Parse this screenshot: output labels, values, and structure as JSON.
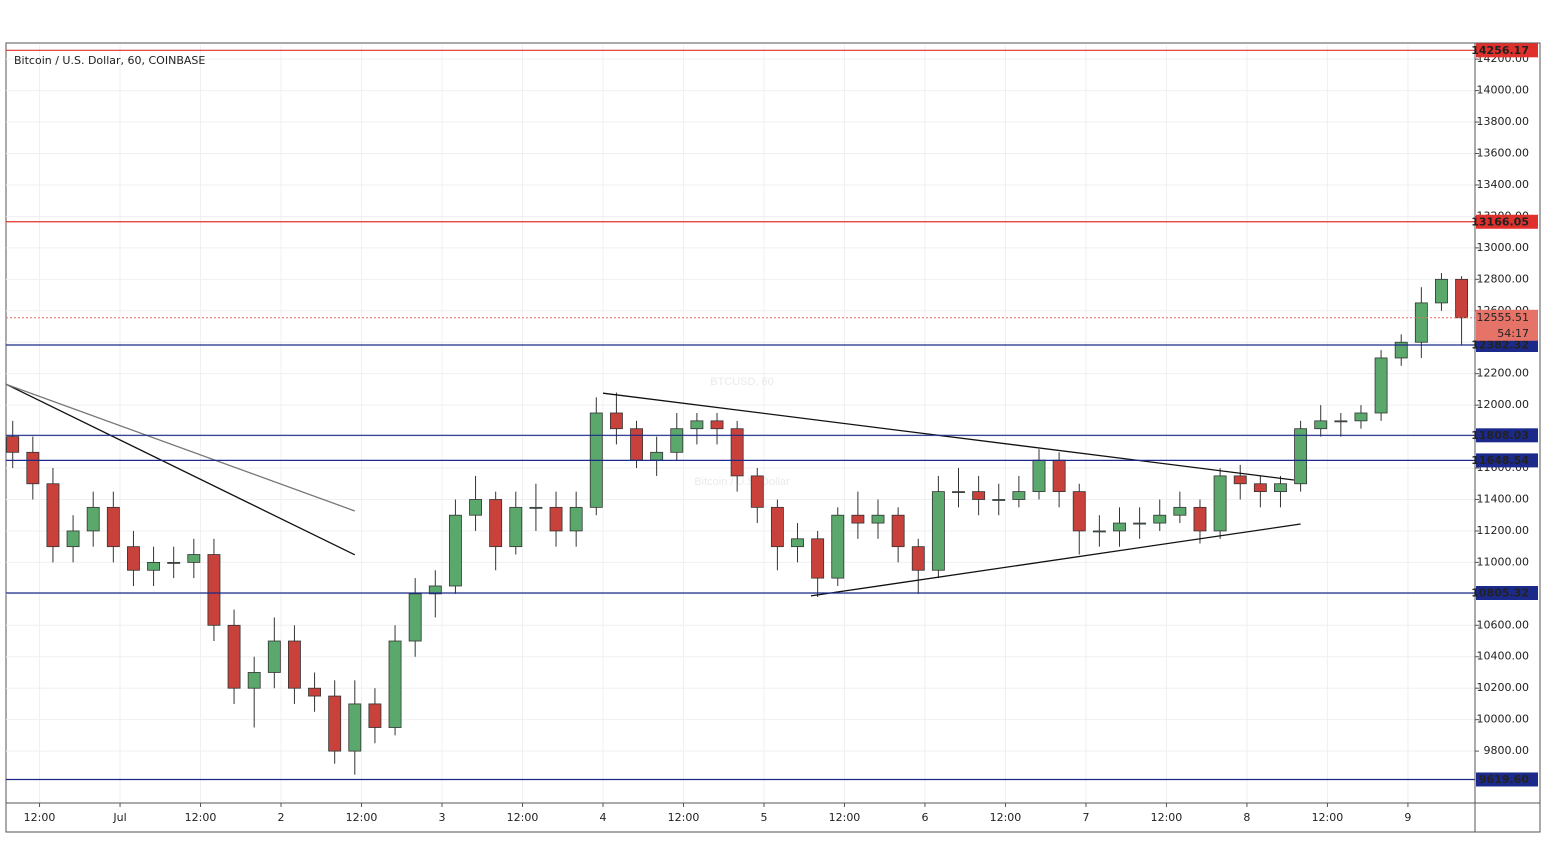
{
  "chart_data": {
    "type": "candlestick",
    "title": "Bitcoin / U.S. Dollar, 60, COINBASE",
    "watermark": "BTCUSD, 60",
    "watermark_subtitle": "Bitcoin / U.S. Dollar",
    "xlim": [
      7,
      226
    ],
    "ylim": [
      9470,
      14290
    ],
    "grid": true,
    "up_color": "#5aa86c",
    "down_color": "#c9413b",
    "xticks": [
      {
        "value": 12,
        "label": "12:00"
      },
      {
        "value": 24,
        "label": "Jul"
      },
      {
        "value": 36,
        "label": "12:00"
      },
      {
        "value": 48,
        "label": "2"
      },
      {
        "value": 60,
        "label": "12:00"
      },
      {
        "value": 72,
        "label": "3"
      },
      {
        "value": 84,
        "label": "12:00"
      },
      {
        "value": 96,
        "label": "4"
      },
      {
        "value": 108,
        "label": "12:00"
      },
      {
        "value": 120,
        "label": "5"
      },
      {
        "value": 132,
        "label": "12:00"
      },
      {
        "value": 144,
        "label": "6"
      },
      {
        "value": 156,
        "label": "12:00"
      },
      {
        "value": 168,
        "label": "7"
      },
      {
        "value": 180,
        "label": "12:00"
      },
      {
        "value": 192,
        "label": "8"
      },
      {
        "value": 204,
        "label": "12:00"
      },
      {
        "value": 216,
        "label": "9"
      }
    ],
    "yticks": [
      {
        "value": 9800,
        "label": "9800.00"
      },
      {
        "value": 10000,
        "label": "10000.00"
      },
      {
        "value": 10200,
        "label": "10200.00"
      },
      {
        "value": 10400,
        "label": "10400.00"
      },
      {
        "value": 10600,
        "label": "10600.00"
      },
      {
        "value": 10800,
        "label": "10800.00"
      },
      {
        "value": 11000,
        "label": "11000.00"
      },
      {
        "value": 11200,
        "label": "11200.00"
      },
      {
        "value": 11400,
        "label": "11400.00"
      },
      {
        "value": 11600,
        "label": "11600.00"
      },
      {
        "value": 11800,
        "label": "11800.00"
      },
      {
        "value": 12000,
        "label": "12000.00"
      },
      {
        "value": 12200,
        "label": "12200.00"
      },
      {
        "value": 12400,
        "label": "12400.00"
      },
      {
        "value": 12600,
        "label": "12600.00"
      },
      {
        "value": 12800,
        "label": "12800.00"
      },
      {
        "value": 13000,
        "label": "13000.00"
      },
      {
        "value": 13200,
        "label": "13200.00"
      },
      {
        "value": 13400,
        "label": "13400.00"
      },
      {
        "value": 13600,
        "label": "13600.00"
      },
      {
        "value": 13800,
        "label": "13800.00"
      },
      {
        "value": 14000,
        "label": "14000.00"
      },
      {
        "value": 14200,
        "label": "14200.00"
      }
    ],
    "x": [
      8,
      11,
      14,
      17,
      20,
      23,
      26,
      29,
      32,
      35,
      38,
      41,
      44,
      47,
      50,
      53,
      56,
      59,
      62,
      65,
      68,
      71,
      74,
      77,
      80,
      83,
      86,
      89,
      92,
      95,
      98,
      101,
      104,
      107,
      110,
      113,
      116,
      119,
      122,
      125,
      128,
      131,
      134,
      137,
      140,
      143,
      146,
      149,
      152,
      155,
      158,
      161,
      164,
      167,
      170,
      173,
      176,
      179,
      182,
      185,
      188,
      191,
      194,
      197,
      200,
      203,
      206,
      209,
      212,
      215,
      218,
      221,
      224
    ],
    "open": [
      11800,
      11700,
      11500,
      11100,
      11200,
      11350,
      11100,
      10950,
      11000,
      11000,
      11050,
      10600,
      10200,
      10300,
      10500,
      10200,
      10150,
      9800,
      10100,
      9950,
      10500,
      10800,
      10850,
      11300,
      11400,
      11100,
      11350,
      11350,
      11200,
      11350,
      11950,
      11850,
      11650,
      11700,
      11850,
      11900,
      11850,
      11550,
      11350,
      11100,
      11150,
      10900,
      11300,
      11250,
      11300,
      11100,
      10950,
      11450,
      11450,
      11400,
      11400,
      11450,
      11650,
      11450,
      11200,
      11200,
      11250,
      11250,
      11300,
      11350,
      11200,
      11550,
      11500,
      11450,
      11500,
      11850,
      11900,
      11900,
      11950,
      12300,
      12400,
      12650,
      12800
    ],
    "high": [
      11900,
      11800,
      11600,
      11300,
      11450,
      11450,
      11200,
      11100,
      11100,
      11150,
      11150,
      10700,
      10400,
      10650,
      10600,
      10300,
      10250,
      10250,
      10200,
      10600,
      10900,
      10950,
      11400,
      11550,
      11450,
      11450,
      11500,
      11450,
      11450,
      12050,
      12080,
      11900,
      11800,
      11950,
      11950,
      11950,
      11900,
      11600,
      11400,
      11250,
      11200,
      11350,
      11450,
      11400,
      11350,
      11150,
      11550,
      11600,
      11550,
      11500,
      11550,
      11720,
      11700,
      11500,
      11300,
      11350,
      11350,
      11400,
      11450,
      11400,
      11600,
      11620,
      11550,
      11550,
      11900,
      12000,
      11950,
      12000,
      12350,
      12450,
      12750,
      12840,
      12820
    ],
    "low": [
      11600,
      11400,
      11000,
      11000,
      11100,
      11000,
      10850,
      10850,
      10900,
      10900,
      10500,
      10100,
      9950,
      10200,
      10100,
      10050,
      9720,
      9650,
      9850,
      9900,
      10400,
      10650,
      10800,
      11200,
      10950,
      11050,
      11200,
      11100,
      11100,
      11300,
      11750,
      11600,
      11550,
      11650,
      11750,
      11750,
      11450,
      11250,
      10950,
      11000,
      10780,
      10850,
      11150,
      11150,
      11000,
      10800,
      10900,
      11350,
      11300,
      11300,
      11350,
      11400,
      11350,
      11050,
      11100,
      11100,
      11150,
      11200,
      11250,
      11120,
      11150,
      11400,
      11350,
      11350,
      11450,
      11800,
      11800,
      11850,
      11900,
      12250,
      12300,
      12600,
      12380
    ],
    "close": [
      11700,
      11500,
      11100,
      11200,
      11350,
      11100,
      10950,
      11000,
      11000,
      11050,
      10600,
      10200,
      10300,
      10500,
      10200,
      10150,
      9800,
      10100,
      9950,
      10500,
      10800,
      10850,
      11300,
      11400,
      11100,
      11350,
      11350,
      11200,
      11350,
      11950,
      11850,
      11650,
      11700,
      11850,
      11900,
      11850,
      11550,
      11350,
      11100,
      11150,
      10900,
      11300,
      11250,
      11300,
      11100,
      10950,
      11450,
      11450,
      11400,
      11400,
      11450,
      11650,
      11450,
      11200,
      11200,
      11250,
      11250,
      11300,
      11350,
      11200,
      11550,
      11500,
      11450,
      11500,
      11850,
      11900,
      11900,
      11950,
      12300,
      12400,
      12650,
      12800,
      12555.51
    ],
    "hlines": [
      {
        "value": 14256.17,
        "color": "#e0302b"
      },
      {
        "value": 13166.05,
        "color": "#e0302b"
      },
      {
        "value": 12382.32,
        "color": "#1b2a8a"
      },
      {
        "value": 11808.03,
        "color": "#1b2a8a"
      },
      {
        "value": 11648.54,
        "color": "#1b2a8a"
      },
      {
        "value": 10805.32,
        "color": "#1b2a8a"
      },
      {
        "value": 9619.6,
        "value_label": "9619.60",
        "color": "#1b2a8a"
      }
    ],
    "price_line": {
      "value": 12555.51,
      "color": "#e57368",
      "countdown": "54:17"
    },
    "trendlines": [
      {
        "x": [
          7,
          59
        ],
        "y": [
          12133,
          11048
        ],
        "color": "#111"
      },
      {
        "x": [
          7,
          59
        ],
        "y": [
          12133,
          11327
        ],
        "color": "#777"
      },
      {
        "x": [
          96,
          199
        ],
        "y": [
          12076,
          11524
        ],
        "color": "#111"
      },
      {
        "x": [
          127,
          200
        ],
        "y": [
          10787,
          11244
        ],
        "color": "#111"
      }
    ]
  }
}
